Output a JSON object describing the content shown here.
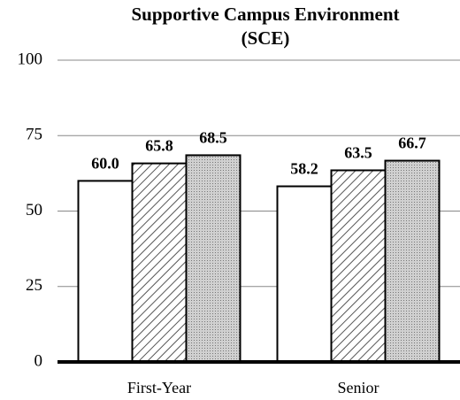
{
  "chart_data": {
    "type": "bar",
    "title": "Supportive Campus Environment",
    "subtitle": "(SCE)",
    "categories": [
      "First-Year",
      "Senior"
    ],
    "series": [
      {
        "color": "#ffffff",
        "pattern": "solid",
        "values": [
          60.0,
          58.2
        ],
        "value_labels": [
          "60.0",
          "58.2"
        ]
      },
      {
        "color": "#ffffff",
        "pattern": "hatch",
        "values": [
          65.8,
          63.5
        ],
        "value_labels": [
          "65.8",
          "63.5"
        ]
      },
      {
        "color": "#c8c8c8",
        "pattern": "dots",
        "values": [
          68.5,
          66.7
        ],
        "value_labels": [
          "68.5",
          "66.7"
        ]
      }
    ],
    "ylim": [
      0,
      100
    ],
    "yticks": [
      0,
      25,
      50,
      75,
      100
    ],
    "grid": true
  }
}
